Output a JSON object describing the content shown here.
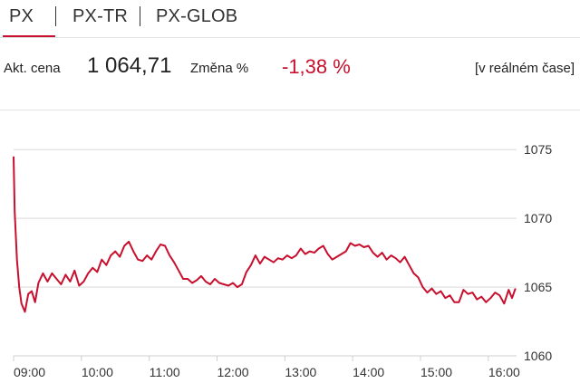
{
  "tabs": [
    {
      "label": "PX",
      "active": true
    },
    {
      "label": "PX-TR",
      "active": false
    },
    {
      "label": "PX-GLOB",
      "active": false
    }
  ],
  "quote": {
    "price_label": "Akt. cena",
    "price": "1 064,71",
    "change_label": "Změna %",
    "change": "-1,38 %",
    "realtime_label": "[v reálném čase]"
  },
  "colors": {
    "accent": "#c8102e",
    "grid": "#d9d9d9",
    "text": "#222222"
  },
  "chart_data": {
    "type": "line",
    "title": "",
    "xlabel": "",
    "ylabel": "",
    "x_ticks": [
      "09:00",
      "10:00",
      "11:00",
      "12:00",
      "13:00",
      "14:00",
      "15:00",
      "16:00"
    ],
    "y_ticks": [
      1075,
      1070,
      1065,
      1060
    ],
    "ylim": [
      1060,
      1076
    ],
    "xlim": [
      "09:00",
      "16:25"
    ],
    "grid": true,
    "series": [
      {
        "color": "#c8102e",
        "points": [
          [
            "09:00",
            1074.5
          ],
          [
            "09:01",
            1070.5
          ],
          [
            "09:03",
            1067.0
          ],
          [
            "09:05",
            1065.0
          ],
          [
            "09:07",
            1063.8
          ],
          [
            "09:10",
            1063.2
          ],
          [
            "09:13",
            1064.5
          ],
          [
            "09:16",
            1064.7
          ],
          [
            "09:19",
            1063.9
          ],
          [
            "09:22",
            1065.3
          ],
          [
            "09:26",
            1066.0
          ],
          [
            "09:30",
            1065.4
          ],
          [
            "09:34",
            1066.0
          ],
          [
            "09:38",
            1065.6
          ],
          [
            "09:42",
            1065.2
          ],
          [
            "09:46",
            1065.9
          ],
          [
            "09:50",
            1065.4
          ],
          [
            "09:54",
            1066.2
          ],
          [
            "09:58",
            1065.1
          ],
          [
            "10:02",
            1065.4
          ],
          [
            "10:06",
            1066.0
          ],
          [
            "10:10",
            1066.4
          ],
          [
            "10:14",
            1066.1
          ],
          [
            "10:18",
            1067.0
          ],
          [
            "10:22",
            1066.6
          ],
          [
            "10:26",
            1067.3
          ],
          [
            "10:30",
            1067.6
          ],
          [
            "10:34",
            1067.2
          ],
          [
            "10:38",
            1068.0
          ],
          [
            "10:42",
            1068.3
          ],
          [
            "10:46",
            1067.6
          ],
          [
            "10:50",
            1067.0
          ],
          [
            "10:54",
            1066.9
          ],
          [
            "10:58",
            1067.3
          ],
          [
            "11:02",
            1067.0
          ],
          [
            "11:06",
            1067.6
          ],
          [
            "11:10",
            1068.1
          ],
          [
            "11:14",
            1068.0
          ],
          [
            "11:18",
            1067.3
          ],
          [
            "11:22",
            1066.8
          ],
          [
            "11:26",
            1066.2
          ],
          [
            "11:30",
            1065.6
          ],
          [
            "11:34",
            1065.6
          ],
          [
            "11:38",
            1065.3
          ],
          [
            "11:42",
            1065.5
          ],
          [
            "11:46",
            1065.8
          ],
          [
            "11:50",
            1065.4
          ],
          [
            "11:54",
            1065.2
          ],
          [
            "11:58",
            1065.6
          ],
          [
            "12:02",
            1065.3
          ],
          [
            "12:06",
            1065.2
          ],
          [
            "12:10",
            1065.1
          ],
          [
            "12:14",
            1065.3
          ],
          [
            "12:18",
            1065.0
          ],
          [
            "12:22",
            1065.2
          ],
          [
            "12:26",
            1066.1
          ],
          [
            "12:30",
            1066.6
          ],
          [
            "12:34",
            1067.3
          ],
          [
            "12:38",
            1066.7
          ],
          [
            "12:42",
            1067.2
          ],
          [
            "12:46",
            1067.0
          ],
          [
            "12:50",
            1066.8
          ],
          [
            "12:54",
            1067.1
          ],
          [
            "12:58",
            1067.0
          ],
          [
            "13:02",
            1067.3
          ],
          [
            "13:06",
            1067.1
          ],
          [
            "13:10",
            1067.3
          ],
          [
            "13:14",
            1067.8
          ],
          [
            "13:18",
            1067.4
          ],
          [
            "13:22",
            1067.6
          ],
          [
            "13:26",
            1067.5
          ],
          [
            "13:30",
            1067.8
          ],
          [
            "13:34",
            1068.0
          ],
          [
            "13:38",
            1067.4
          ],
          [
            "13:42",
            1067.0
          ],
          [
            "13:46",
            1067.2
          ],
          [
            "13:50",
            1067.4
          ],
          [
            "13:54",
            1067.6
          ],
          [
            "13:58",
            1068.2
          ],
          [
            "14:02",
            1068.0
          ],
          [
            "14:06",
            1068.1
          ],
          [
            "14:10",
            1067.9
          ],
          [
            "14:14",
            1068.0
          ],
          [
            "14:18",
            1067.5
          ],
          [
            "14:22",
            1067.2
          ],
          [
            "14:26",
            1067.5
          ],
          [
            "14:30",
            1067.0
          ],
          [
            "14:34",
            1067.3
          ],
          [
            "14:38",
            1067.1
          ],
          [
            "14:42",
            1066.8
          ],
          [
            "14:46",
            1067.2
          ],
          [
            "14:50",
            1066.6
          ],
          [
            "14:54",
            1066.0
          ],
          [
            "14:58",
            1065.7
          ],
          [
            "15:02",
            1065.0
          ],
          [
            "15:06",
            1064.6
          ],
          [
            "15:10",
            1064.9
          ],
          [
            "15:14",
            1064.5
          ],
          [
            "15:18",
            1064.7
          ],
          [
            "15:22",
            1064.2
          ],
          [
            "15:26",
            1064.4
          ],
          [
            "15:30",
            1063.9
          ],
          [
            "15:34",
            1063.9
          ],
          [
            "15:38",
            1064.8
          ],
          [
            "15:42",
            1064.5
          ],
          [
            "15:46",
            1064.6
          ],
          [
            "15:50",
            1064.1
          ],
          [
            "15:54",
            1064.3
          ],
          [
            "15:58",
            1063.9
          ],
          [
            "16:02",
            1064.2
          ],
          [
            "16:06",
            1064.6
          ],
          [
            "16:10",
            1064.4
          ],
          [
            "16:14",
            1063.8
          ],
          [
            "16:18",
            1064.8
          ],
          [
            "16:21",
            1064.2
          ],
          [
            "16:24",
            1064.9
          ]
        ]
      }
    ]
  }
}
